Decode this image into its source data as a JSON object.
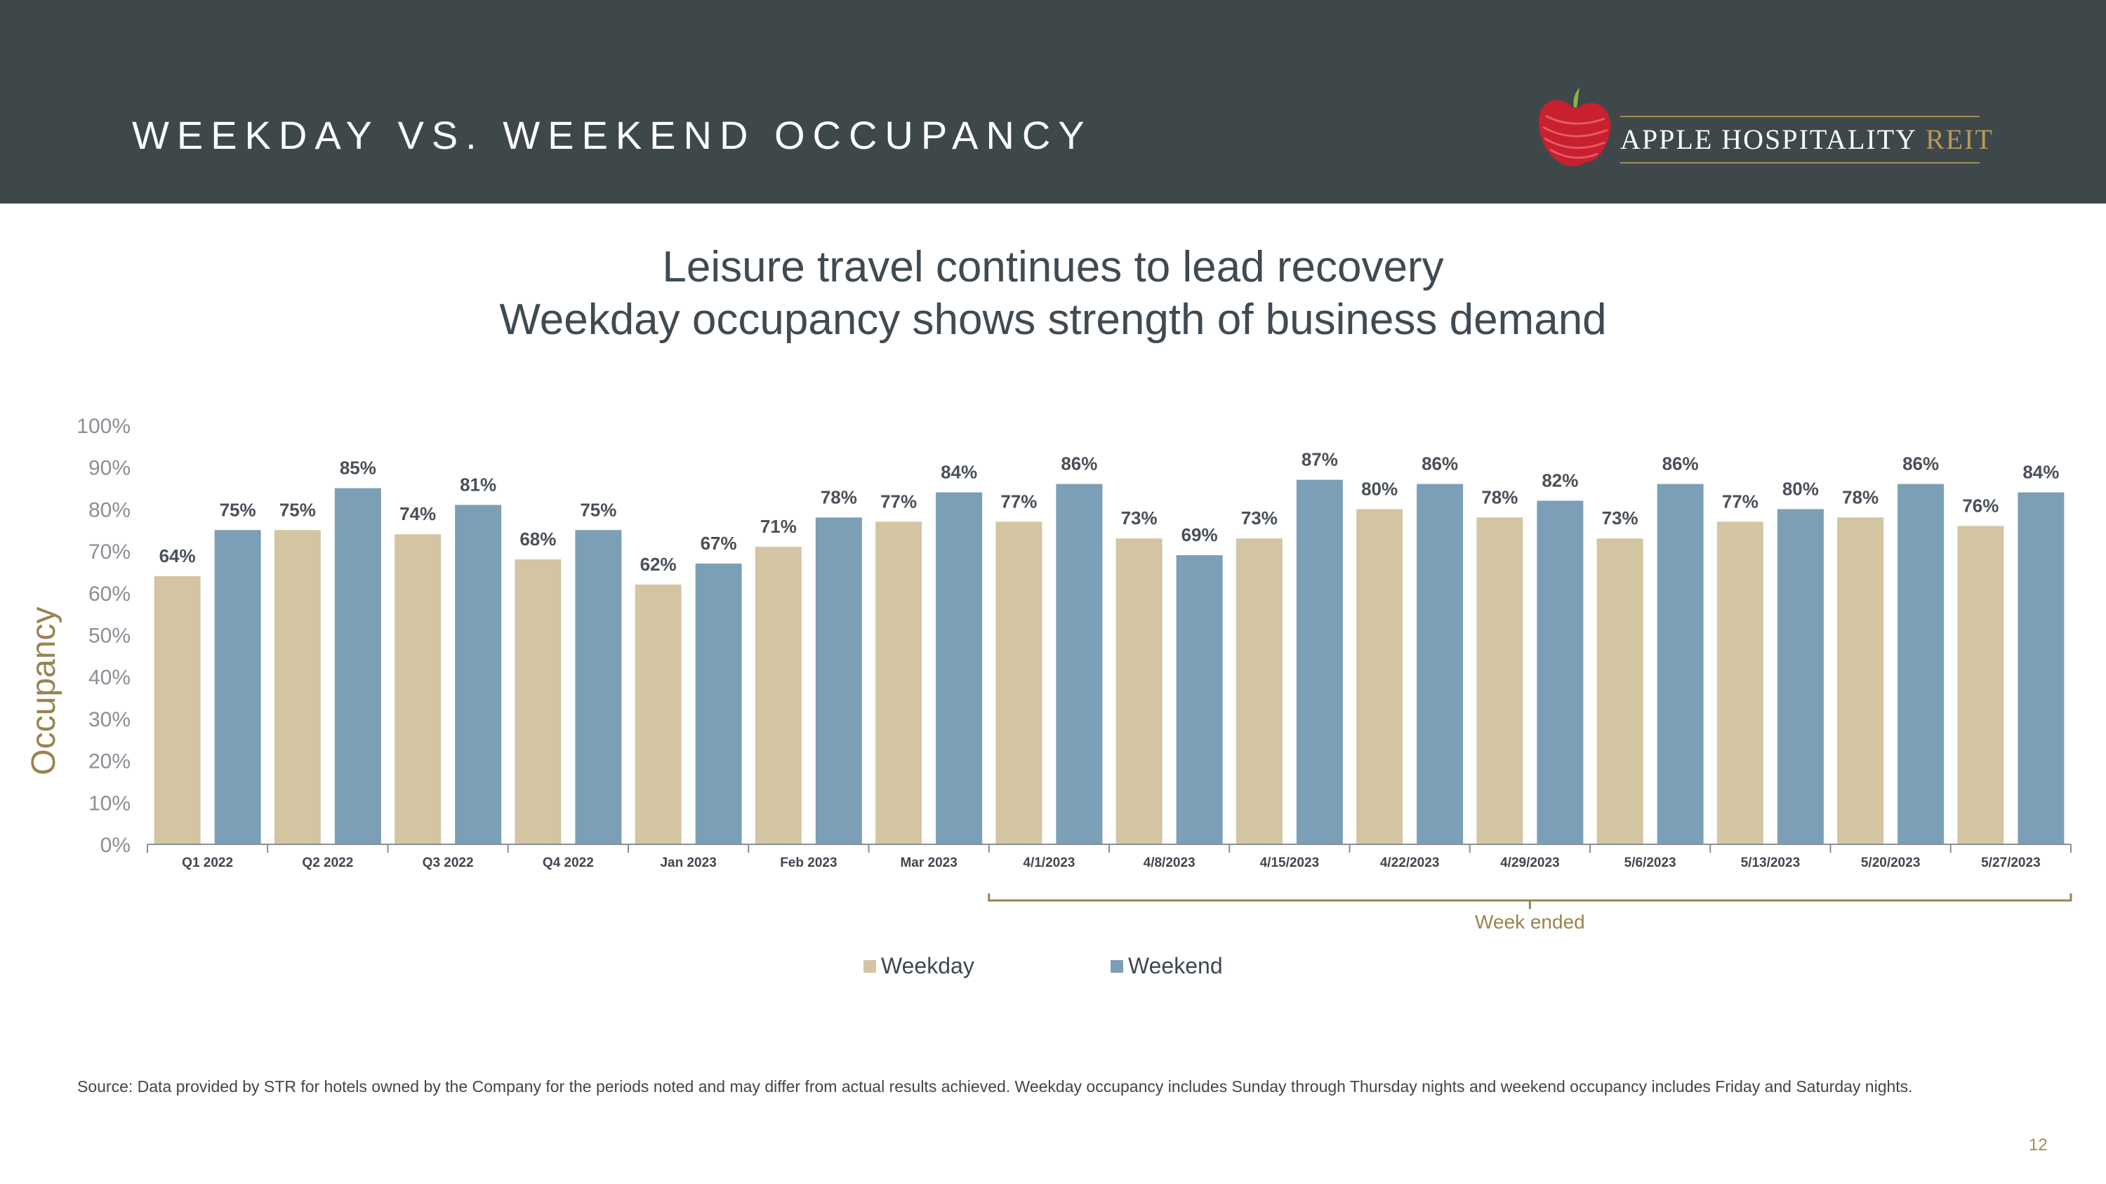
{
  "header": {
    "title": "WEEKDAY VS. WEEKEND OCCUPANCY"
  },
  "logo": {
    "name": "APPLE HOSPITALITY",
    "suffix": "REIT"
  },
  "subtitle": {
    "line1": "Leisure travel continues to lead recovery",
    "line2": "Weekday occupancy shows strength of business demand"
  },
  "chart_data": {
    "type": "bar",
    "ylabel": "Occupancy",
    "ylim": [
      0,
      100
    ],
    "yticks": [
      "0%",
      "10%",
      "20%",
      "30%",
      "40%",
      "50%",
      "60%",
      "70%",
      "80%",
      "90%",
      "100%"
    ],
    "categories": [
      "Q1 2022",
      "Q2 2022",
      "Q3 2022",
      "Q4 2022",
      "Jan 2023",
      "Feb 2023",
      "Mar 2023",
      "4/1/2023",
      "4/8/2023",
      "4/15/2023",
      "4/22/2023",
      "4/29/2023",
      "5/6/2023",
      "5/13/2023",
      "5/20/2023",
      "5/27/2023"
    ],
    "series": [
      {
        "name": "Weekday",
        "color": "#d3c5a1",
        "values": [
          64,
          75,
          74,
          68,
          62,
          71,
          77,
          77,
          73,
          73,
          80,
          78,
          73,
          77,
          78,
          76
        ],
        "labels": [
          "64%",
          "75%",
          "74%",
          "68%",
          "62%",
          "71%",
          "77%",
          "77%",
          "73%",
          "73%",
          "80%",
          "78%",
          "73%",
          "77%",
          "78%",
          "76%"
        ]
      },
      {
        "name": "Weekend",
        "color": "#7b9fb6",
        "values": [
          75,
          85,
          81,
          75,
          67,
          78,
          84,
          86,
          69,
          87,
          86,
          82,
          86,
          80,
          86,
          84
        ],
        "labels": [
          "75%",
          "85%",
          "81%",
          "75%",
          "67%",
          "78%",
          "84%",
          "86%",
          "69%",
          "87%",
          "86%",
          "82%",
          "86%",
          "80%",
          "86%",
          "84%"
        ]
      }
    ],
    "annotation": "Week ended",
    "legend_position": "bottom-center"
  },
  "footnote": "Source:  Data provided by STR for hotels owned by the Company for the periods noted and may differ from actual results achieved. Weekday occupancy includes Sunday through Thursday nights and weekend occupancy includes Friday and Saturday nights.",
  "page_number": "12"
}
